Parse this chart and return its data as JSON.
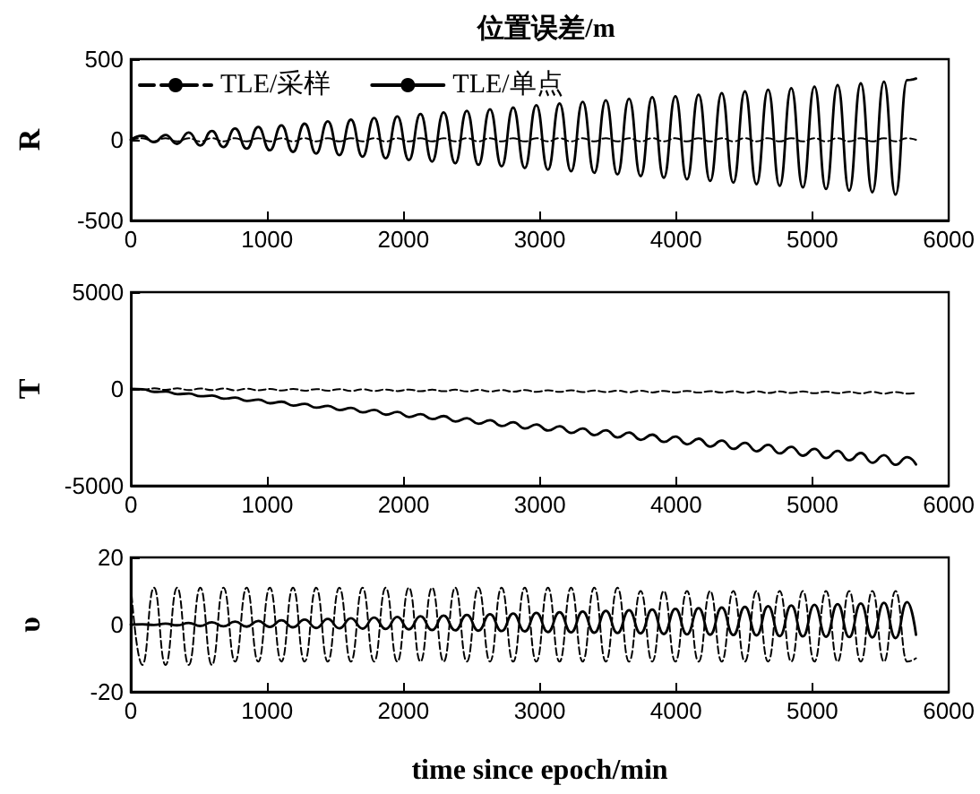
{
  "chart_data": [
    {
      "type": "line",
      "title": "位置误差/m",
      "ylabel": "R",
      "legend": "top left",
      "marker": "none",
      "x": [
        0,
        85,
        170,
        255,
        340,
        425,
        510,
        595,
        680,
        765,
        850,
        935,
        1020,
        1105,
        1190,
        1275,
        1360,
        1445,
        1530,
        1615,
        1700,
        1785,
        1870,
        1955,
        2040,
        2125,
        2210,
        2295,
        2380,
        2465,
        2550,
        2635,
        2720,
        2805,
        2890,
        2975,
        3060,
        3145,
        3230,
        3315,
        3400,
        3485,
        3570,
        3655,
        3740,
        3825,
        3910,
        3995,
        4080,
        4165,
        4250,
        4335,
        4420,
        4505,
        4590,
        4675,
        4760,
        4845,
        4930,
        5015,
        5100,
        5185,
        5270,
        5355,
        5440,
        5525,
        5610,
        5695,
        5760
      ],
      "xlim": [
        0,
        6000
      ],
      "xticks": [
        0,
        1000,
        2000,
        3000,
        4000,
        5000,
        6000
      ],
      "ylim": [
        -500,
        500
      ],
      "yticks": [
        -500,
        0,
        500
      ],
      "series": [
        {
          "name": "TLE/采样",
          "color": "#000000",
          "line_style": "dashed",
          "values": [
            0,
            10,
            -10,
            10,
            -10,
            10,
            -10,
            10,
            -10,
            10,
            -10,
            10,
            -10,
            10,
            -10,
            10,
            -10,
            10,
            -10,
            10,
            -10,
            10,
            -10,
            10,
            -10,
            10,
            -10,
            10,
            -10,
            10,
            -10,
            10,
            -10,
            10,
            -10,
            10,
            -10,
            10,
            -10,
            10,
            -10,
            10,
            -10,
            10,
            -10,
            10,
            -10,
            10,
            -10,
            10,
            -10,
            10,
            -10,
            10,
            -10,
            10,
            -10,
            10,
            -10,
            10,
            -10,
            10,
            -10,
            10,
            -10,
            10,
            -10,
            10,
            0
          ]
        },
        {
          "name": "TLE/单点",
          "color": "#000000",
          "line_style": "solid",
          "values": [
            0,
            25,
            -15,
            30,
            -25,
            45,
            -35,
            55,
            -45,
            70,
            -55,
            80,
            -65,
            90,
            -75,
            100,
            -85,
            115,
            -95,
            125,
            -105,
            135,
            -115,
            145,
            -125,
            160,
            -135,
            170,
            -145,
            180,
            -155,
            190,
            -165,
            200,
            -175,
            215,
            -185,
            225,
            -195,
            235,
            -205,
            245,
            -215,
            255,
            -225,
            265,
            -235,
            270,
            -245,
            280,
            -255,
            290,
            -265,
            300,
            -275,
            310,
            -285,
            320,
            -295,
            330,
            -305,
            340,
            -315,
            350,
            -325,
            360,
            -340,
            370,
            380
          ]
        }
      ]
    },
    {
      "type": "line",
      "ylabel": "T",
      "marker": "none",
      "x": [
        0,
        85,
        170,
        255,
        340,
        425,
        510,
        595,
        680,
        765,
        850,
        935,
        1020,
        1105,
        1190,
        1275,
        1360,
        1445,
        1530,
        1615,
        1700,
        1785,
        1870,
        1955,
        2040,
        2125,
        2210,
        2295,
        2380,
        2465,
        2550,
        2635,
        2720,
        2805,
        2890,
        2975,
        3060,
        3145,
        3230,
        3315,
        3400,
        3485,
        3570,
        3655,
        3740,
        3825,
        3910,
        3995,
        4080,
        4165,
        4250,
        4335,
        4420,
        4505,
        4590,
        4675,
        4760,
        4845,
        4930,
        5015,
        5100,
        5185,
        5270,
        5355,
        5440,
        5525,
        5610,
        5695,
        5760
      ],
      "xlim": [
        0,
        6000
      ],
      "xticks": [
        0,
        1000,
        2000,
        3000,
        4000,
        5000,
        6000
      ],
      "ylim": [
        -5000,
        5000
      ],
      "yticks": [
        -5000,
        0,
        5000
      ],
      "series": [
        {
          "color": "#000000",
          "line_style": "dashed",
          "values": [
            0,
            -40,
            30,
            -50,
            30,
            -60,
            20,
            -60,
            20,
            -70,
            10,
            -70,
            0,
            -80,
            0,
            -90,
            -10,
            -90,
            -10,
            -100,
            -20,
            -100,
            -30,
            -110,
            -30,
            -120,
            -40,
            -120,
            -40,
            -130,
            -50,
            -130,
            -60,
            -140,
            -60,
            -150,
            -70,
            -150,
            -70,
            -160,
            -80,
            -160,
            -90,
            -170,
            -90,
            -180,
            -100,
            -180,
            -100,
            -190,
            -110,
            -190,
            -120,
            -200,
            -120,
            -210,
            -130,
            -210,
            -130,
            -220,
            -140,
            -220,
            -150,
            -230,
            -150,
            -240,
            -160,
            -240,
            -200
          ]
        },
        {
          "color": "#000000",
          "line_style": "solid",
          "values": [
            0,
            -20,
            -150,
            -130,
            -270,
            -240,
            -380,
            -340,
            -500,
            -450,
            -620,
            -550,
            -740,
            -660,
            -860,
            -770,
            -970,
            -870,
            -1090,
            -980,
            -1210,
            -1080,
            -1330,
            -1190,
            -1450,
            -1300,
            -1560,
            -1400,
            -1680,
            -1510,
            -1800,
            -1610,
            -1920,
            -1720,
            -2040,
            -1830,
            -2150,
            -1930,
            -2270,
            -2040,
            -2390,
            -2140,
            -2510,
            -2250,
            -2630,
            -2360,
            -2740,
            -2460,
            -2860,
            -2570,
            -2980,
            -2670,
            -3100,
            -2780,
            -3220,
            -2890,
            -3330,
            -2990,
            -3450,
            -3100,
            -3570,
            -3200,
            -3690,
            -3310,
            -3810,
            -3420,
            -3920,
            -3520,
            -3900
          ]
        }
      ]
    },
    {
      "type": "line",
      "ylabel": "υ",
      "xlabel": "time since epoch/min",
      "marker": "none",
      "x": [
        0,
        85,
        170,
        255,
        340,
        425,
        510,
        595,
        680,
        765,
        850,
        935,
        1020,
        1105,
        1190,
        1275,
        1360,
        1445,
        1530,
        1615,
        1700,
        1785,
        1870,
        1955,
        2040,
        2125,
        2210,
        2295,
        2380,
        2465,
        2550,
        2635,
        2720,
        2805,
        2890,
        2975,
        3060,
        3145,
        3230,
        3315,
        3400,
        3485,
        3570,
        3655,
        3740,
        3825,
        3910,
        3995,
        4080,
        4165,
        4250,
        4335,
        4420,
        4505,
        4590,
        4675,
        4760,
        4845,
        4930,
        5015,
        5100,
        5185,
        5270,
        5355,
        5440,
        5525,
        5610,
        5695,
        5760
      ],
      "xlim": [
        0,
        6000
      ],
      "xticks": [
        0,
        1000,
        2000,
        3000,
        4000,
        5000,
        6000
      ],
      "ylim": [
        -20,
        20
      ],
      "yticks": [
        -20,
        0,
        20
      ],
      "series": [
        {
          "color": "#000000",
          "line_style": "dashed",
          "values": [
            12,
            -12,
            11,
            -12,
            11,
            -12,
            11,
            -12,
            11,
            -11,
            11,
            -11,
            11,
            -11,
            11,
            -11,
            11,
            -11,
            11,
            -11,
            11,
            -11,
            11,
            -11,
            11,
            -11,
            11,
            -11,
            11,
            -11,
            11,
            -11,
            11,
            -11,
            11,
            -11,
            11,
            -11,
            11,
            -11,
            11,
            -11,
            11,
            -11,
            10,
            -11,
            10,
            -11,
            10,
            -11,
            10,
            -11,
            10,
            -11,
            10,
            -11,
            10,
            -11,
            10,
            -11,
            10,
            -11,
            10,
            -11,
            10,
            -11,
            10,
            -11,
            -10
          ]
        },
        {
          "color": "#000000",
          "line_style": "solid",
          "values": [
            0,
            0.1,
            -0.1,
            0.3,
            -0.2,
            0.5,
            -0.4,
            0.7,
            -0.5,
            0.9,
            -0.6,
            1.1,
            -0.7,
            1.3,
            -0.8,
            1.5,
            -1,
            1.7,
            -1.1,
            1.9,
            -1.2,
            2.1,
            -1.3,
            2.3,
            -1.4,
            2.5,
            -1.6,
            2.7,
            -1.7,
            2.9,
            -1.8,
            3.1,
            -1.9,
            3.3,
            -2,
            3.5,
            -2.2,
            3.7,
            -2.3,
            3.9,
            -2.4,
            4.1,
            -2.5,
            4.3,
            -2.6,
            4.5,
            -2.8,
            4.7,
            -2.9,
            4.9,
            -3,
            5.1,
            -3.1,
            5.3,
            -3.2,
            5.5,
            -3.4,
            5.7,
            -3.5,
            5.9,
            -3.6,
            6.1,
            -3.7,
            6.3,
            -3.8,
            6.5,
            -4,
            6.7,
            -3
          ]
        }
      ]
    }
  ]
}
